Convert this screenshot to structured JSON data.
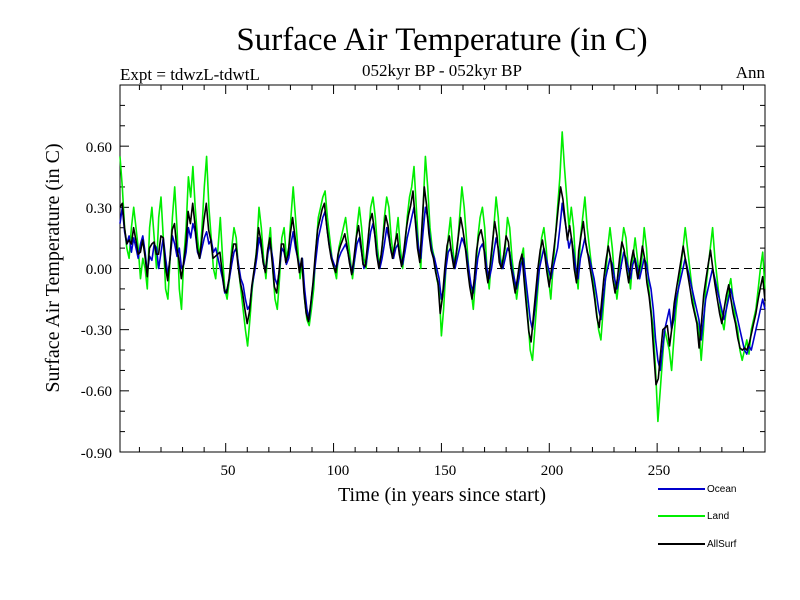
{
  "chart_data": {
    "type": "line",
    "title": "Surface Air Temperature (in C)",
    "subtitle": "052kyr BP - 052kyr BP",
    "experiment": "Expt = tdwzL-tdwtL",
    "period": "Ann",
    "xlabel": "Time (in years since start)",
    "ylabel": "Surface Air Temperature (in C)",
    "xlim": [
      1,
      300
    ],
    "ylim": [
      -0.9,
      0.9
    ],
    "x_ticks": [
      "50",
      "100",
      "150",
      "200",
      "250"
    ],
    "y_ticks": [
      "0.60",
      "0.30",
      "0.00",
      "-0.30",
      "-0.60",
      "-0.90"
    ],
    "zero_line": "dashed",
    "legend_position": "bottom-right",
    "series": [
      {
        "name": "Ocean",
        "color": "#0000cc",
        "values": [
          0.22,
          0.3,
          0.18,
          0.12,
          0.16,
          0.08,
          0.15,
          0.1,
          0.05,
          0.12,
          0.16,
          0.08,
          -0.02,
          0.06,
          0.04,
          0.12,
          0.1,
          0.0,
          0.08,
          0.15,
          0.05,
          -0.03,
          0.05,
          0.16,
          0.12,
          0.06,
          0.1,
          0.0,
          0.02,
          0.08,
          0.2,
          0.15,
          0.22,
          0.18,
          0.08,
          0.05,
          0.1,
          0.15,
          0.18,
          0.12,
          0.14,
          0.08,
          0.1,
          0.05,
          0.0,
          -0.05,
          -0.12,
          -0.1,
          -0.05,
          0.02,
          0.08,
          0.1,
          0.02,
          -0.05,
          -0.08,
          -0.15,
          -0.2,
          -0.18,
          -0.08,
          -0.02,
          0.05,
          0.15,
          0.1,
          0.02,
          0.0,
          0.08,
          0.12,
          0.05,
          -0.05,
          -0.08,
          0.0,
          0.1,
          0.08,
          0.02,
          0.05,
          0.12,
          0.18,
          0.1,
          0.05,
          0.0,
          0.05,
          -0.1,
          -0.2,
          -0.25,
          -0.15,
          -0.05,
          0.05,
          0.15,
          0.2,
          0.25,
          0.28,
          0.18,
          0.1,
          0.05,
          0.02,
          0.0,
          0.05,
          0.08,
          0.1,
          0.12,
          0.08,
          0.02,
          -0.02,
          0.05,
          0.12,
          0.15,
          0.08,
          0.0,
          0.02,
          0.1,
          0.18,
          0.22,
          0.15,
          0.05,
          0.0,
          0.05,
          0.12,
          0.2,
          0.15,
          0.08,
          0.05,
          0.1,
          0.12,
          0.05,
          0.02,
          0.08,
          0.15,
          0.2,
          0.25,
          0.3,
          0.2,
          0.1,
          0.05,
          0.18,
          0.3,
          0.25,
          0.15,
          0.08,
          0.05,
          0.0,
          -0.05,
          -0.15,
          -0.1,
          0.0,
          0.08,
          0.1,
          0.05,
          0.0,
          0.05,
          0.1,
          0.15,
          0.12,
          0.08,
          0.0,
          -0.08,
          -0.12,
          -0.05,
          0.05,
          0.1,
          0.12,
          0.08,
          0.0,
          -0.05,
          0.0,
          0.08,
          0.15,
          0.1,
          0.02,
          0.0,
          0.05,
          0.1,
          0.08,
          0.0,
          -0.05,
          -0.1,
          -0.05,
          0.02,
          0.05,
          -0.05,
          -0.15,
          -0.25,
          -0.3,
          -0.2,
          -0.1,
          0.0,
          0.05,
          0.1,
          0.05,
          0.0,
          -0.05,
          0.0,
          0.05,
          0.1,
          0.2,
          0.32,
          0.25,
          0.18,
          0.1,
          0.15,
          0.08,
          0.0,
          -0.05,
          0.05,
          0.1,
          0.15,
          0.08,
          0.05,
          0.0,
          -0.05,
          -0.12,
          -0.2,
          -0.25,
          -0.15,
          -0.05,
          0.0,
          0.05,
          0.02,
          -0.05,
          -0.1,
          -0.05,
          0.02,
          0.08,
          0.05,
          0.0,
          -0.05,
          0.02,
          0.05,
          0.0,
          -0.05,
          0.0,
          0.05,
          0.02,
          -0.05,
          -0.1,
          -0.2,
          -0.35,
          -0.45,
          -0.5,
          -0.4,
          -0.3,
          -0.25,
          -0.2,
          -0.3,
          -0.25,
          -0.15,
          -0.1,
          -0.05,
          0.0,
          0.05,
          0.0,
          -0.05,
          -0.1,
          -0.15,
          -0.2,
          -0.25,
          -0.35,
          -0.25,
          -0.15,
          -0.1,
          -0.05,
          0.0,
          -0.05,
          -0.1,
          -0.15,
          -0.2,
          -0.25,
          -0.2,
          -0.15,
          -0.1,
          -0.15,
          -0.2,
          -0.25,
          -0.3,
          -0.35,
          -0.4,
          -0.42,
          -0.38,
          -0.4,
          -0.35,
          -0.3,
          -0.25,
          -0.2,
          -0.15,
          -0.2
        ]
      },
      {
        "name": "Land",
        "color": "#00ee00",
        "values": [
          0.55,
          0.4,
          0.2,
          0.1,
          0.05,
          0.2,
          0.3,
          0.2,
          0.1,
          -0.05,
          0.05,
          0.0,
          -0.1,
          0.2,
          0.3,
          0.15,
          0.0,
          0.25,
          0.35,
          0.15,
          -0.1,
          -0.15,
          0.05,
          0.25,
          0.4,
          0.2,
          -0.1,
          -0.2,
          0.05,
          0.2,
          0.45,
          0.35,
          0.5,
          0.3,
          0.15,
          0.05,
          0.2,
          0.4,
          0.55,
          0.3,
          0.15,
          0.0,
          -0.05,
          0.1,
          0.25,
          0.05,
          -0.1,
          -0.15,
          -0.05,
          0.1,
          0.2,
          0.15,
          0.0,
          -0.1,
          -0.2,
          -0.3,
          -0.38,
          -0.25,
          -0.1,
          0.0,
          0.1,
          0.3,
          0.2,
          0.05,
          -0.05,
          0.1,
          0.2,
          0.0,
          -0.15,
          -0.2,
          -0.05,
          0.15,
          0.2,
          0.05,
          0.1,
          0.25,
          0.4,
          0.25,
          0.1,
          -0.05,
          0.05,
          -0.15,
          -0.25,
          -0.28,
          -0.2,
          -0.1,
          0.1,
          0.25,
          0.3,
          0.35,
          0.38,
          0.25,
          0.15,
          0.05,
          0.0,
          -0.05,
          0.1,
          0.15,
          0.2,
          0.25,
          0.15,
          0.05,
          -0.05,
          0.05,
          0.2,
          0.3,
          0.2,
          0.05,
          0.0,
          0.15,
          0.3,
          0.35,
          0.25,
          0.1,
          0.0,
          0.1,
          0.25,
          0.35,
          0.3,
          0.15,
          0.05,
          0.15,
          0.25,
          0.1,
          0.0,
          0.1,
          0.25,
          0.35,
          0.4,
          0.5,
          0.3,
          0.1,
          0.0,
          0.3,
          0.55,
          0.4,
          0.2,
          0.1,
          0.05,
          -0.05,
          -0.1,
          -0.33,
          -0.2,
          0.0,
          0.15,
          0.25,
          0.1,
          0.0,
          0.1,
          0.25,
          0.4,
          0.3,
          0.15,
          0.0,
          -0.1,
          -0.2,
          -0.05,
          0.15,
          0.25,
          0.3,
          0.2,
          0.0,
          -0.1,
          0.05,
          0.2,
          0.35,
          0.25,
          0.05,
          0.0,
          0.1,
          0.25,
          0.2,
          0.05,
          -0.05,
          -0.15,
          -0.05,
          0.05,
          0.1,
          -0.1,
          -0.25,
          -0.4,
          -0.45,
          -0.3,
          -0.15,
          0.0,
          0.15,
          0.2,
          0.1,
          -0.05,
          -0.15,
          0.0,
          0.15,
          0.3,
          0.45,
          0.67,
          0.5,
          0.35,
          0.2,
          0.3,
          0.2,
          0.0,
          -0.1,
          0.15,
          0.25,
          0.35,
          0.2,
          0.1,
          0.0,
          -0.1,
          -0.2,
          -0.3,
          -0.35,
          -0.2,
          -0.05,
          0.1,
          0.2,
          0.1,
          -0.05,
          -0.15,
          -0.05,
          0.1,
          0.2,
          0.15,
          0.0,
          -0.1,
          0.05,
          0.15,
          0.05,
          -0.05,
          0.05,
          0.2,
          0.1,
          -0.1,
          -0.2,
          -0.3,
          -0.5,
          -0.75,
          -0.6,
          -0.45,
          -0.3,
          -0.35,
          -0.4,
          -0.5,
          -0.35,
          -0.2,
          -0.1,
          0.0,
          0.1,
          0.2,
          0.1,
          0.0,
          -0.1,
          -0.2,
          -0.25,
          -0.3,
          -0.45,
          -0.3,
          -0.1,
          0.0,
          0.1,
          0.2,
          0.05,
          -0.05,
          -0.15,
          -0.25,
          -0.3,
          -0.2,
          -0.1,
          -0.05,
          -0.15,
          -0.25,
          -0.3,
          -0.4,
          -0.45,
          -0.4,
          -0.35,
          -0.42,
          -0.3,
          -0.25,
          -0.2,
          -0.1,
          0.0,
          0.08,
          -0.1
        ]
      },
      {
        "name": "AllSurf",
        "color": "#000000",
        "values": [
          0.3,
          0.32,
          0.2,
          0.12,
          0.14,
          0.12,
          0.2,
          0.14,
          0.07,
          0.08,
          0.14,
          0.06,
          -0.04,
          0.1,
          0.12,
          0.13,
          0.07,
          0.07,
          0.16,
          0.15,
          0.01,
          -0.06,
          0.05,
          0.19,
          0.22,
          0.1,
          0.04,
          -0.05,
          0.03,
          0.12,
          0.28,
          0.22,
          0.32,
          0.22,
          0.1,
          0.05,
          0.14,
          0.24,
          0.32,
          0.19,
          0.14,
          0.05,
          0.06,
          0.07,
          0.08,
          -0.02,
          -0.11,
          -0.12,
          -0.05,
          0.05,
          0.12,
          0.12,
          0.01,
          -0.07,
          -0.12,
          -0.2,
          -0.27,
          -0.21,
          -0.09,
          -0.01,
          0.07,
          0.2,
          0.14,
          0.03,
          -0.02,
          0.09,
          0.15,
          0.03,
          -0.09,
          -0.12,
          -0.02,
          0.12,
          0.12,
          0.03,
          0.07,
          0.17,
          0.25,
          0.16,
          0.07,
          -0.02,
          0.05,
          -0.12,
          -0.22,
          -0.26,
          -0.17,
          -0.07,
          0.07,
          0.19,
          0.24,
          0.29,
          0.32,
          0.21,
          0.12,
          0.05,
          0.01,
          -0.02,
          0.07,
          0.11,
          0.14,
          0.17,
          0.11,
          0.03,
          -0.03,
          0.05,
          0.15,
          0.21,
          0.13,
          0.02,
          0.01,
          0.12,
          0.23,
          0.27,
          0.19,
          0.07,
          0.0,
          0.07,
          0.17,
          0.26,
          0.21,
          0.11,
          0.05,
          0.12,
          0.17,
          0.07,
          0.01,
          0.09,
          0.19,
          0.26,
          0.31,
          0.38,
          0.24,
          0.1,
          0.03,
          0.22,
          0.4,
          0.31,
          0.17,
          0.09,
          0.05,
          -0.02,
          -0.07,
          -0.22,
          -0.14,
          0.0,
          0.11,
          0.16,
          0.07,
          0.0,
          0.07,
          0.16,
          0.25,
          0.19,
          0.11,
          0.0,
          -0.09,
          -0.15,
          -0.05,
          0.09,
          0.16,
          0.19,
          0.13,
          0.0,
          -0.07,
          0.02,
          0.13,
          0.23,
          0.16,
          0.03,
          0.0,
          0.07,
          0.16,
          0.13,
          0.02,
          -0.05,
          -0.12,
          -0.05,
          0.03,
          0.07,
          -0.07,
          -0.19,
          -0.31,
          -0.36,
          -0.24,
          -0.12,
          0.0,
          0.09,
          0.14,
          0.07,
          -0.02,
          -0.09,
          0.0,
          0.09,
          0.19,
          0.3,
          0.4,
          0.34,
          0.24,
          0.14,
          0.21,
          0.13,
          0.0,
          -0.07,
          0.09,
          0.16,
          0.23,
          0.13,
          0.07,
          0.0,
          -0.07,
          -0.15,
          -0.24,
          -0.29,
          -0.17,
          -0.05,
          0.04,
          0.11,
          0.05,
          -0.05,
          -0.12,
          -0.05,
          0.05,
          0.13,
          0.09,
          0.0,
          -0.07,
          0.03,
          0.09,
          0.02,
          -0.05,
          0.02,
          0.11,
          0.05,
          -0.07,
          -0.14,
          -0.24,
          -0.41,
          -0.57,
          -0.54,
          -0.42,
          -0.3,
          -0.29,
          -0.28,
          -0.38,
          -0.29,
          -0.17,
          -0.1,
          -0.03,
          0.04,
          0.11,
          0.04,
          -0.03,
          -0.1,
          -0.17,
          -0.22,
          -0.27,
          -0.39,
          -0.27,
          -0.13,
          -0.05,
          0.02,
          0.09,
          0.0,
          -0.08,
          -0.15,
          -0.22,
          -0.27,
          -0.2,
          -0.13,
          -0.08,
          -0.15,
          -0.22,
          -0.27,
          -0.34,
          -0.39,
          -0.4,
          -0.39,
          -0.4,
          -0.37,
          -0.32,
          -0.27,
          -0.22,
          -0.15,
          -0.09,
          -0.04,
          -0.16
        ]
      }
    ]
  }
}
